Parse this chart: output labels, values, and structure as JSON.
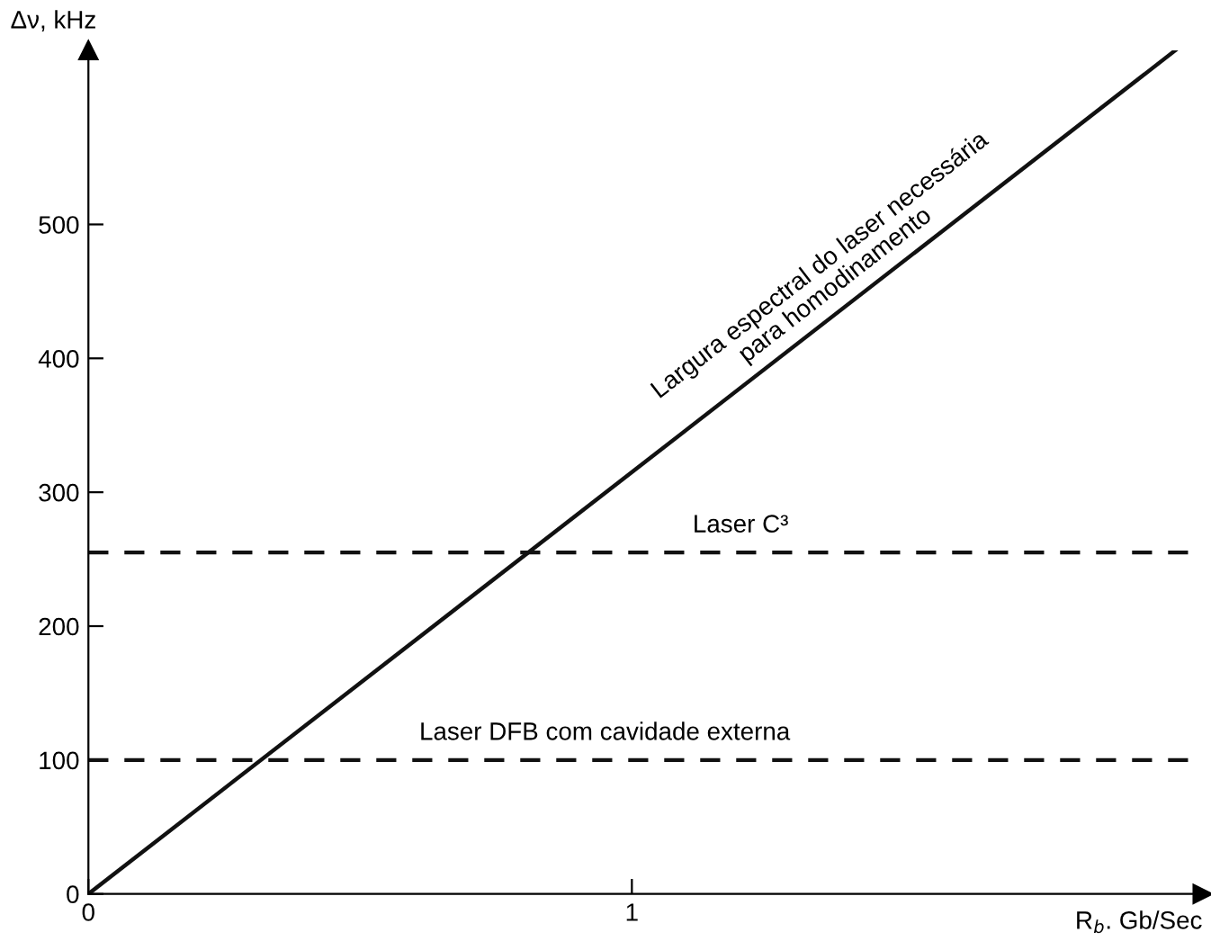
{
  "chart_data": {
    "type": "line",
    "xlabel": "R$_{b}$. Gb/Sec",
    "ylabel": "Δν, kHz",
    "series": [
      {
        "color": "#111111",
        "x": [
          0,
          2.0
        ],
        "values": [
          0,
          630
        ]
      }
    ],
    "xlim": [
      0,
      2.05
    ],
    "ylim": [
      0,
      630
    ],
    "xticks": [
      0,
      1
    ],
    "yticks": [
      0,
      100,
      200,
      300,
      400,
      500
    ],
    "ref_lines": [
      {
        "axis": "y",
        "value": 255,
        "color": "#111111",
        "line_style": "dashed"
      },
      {
        "axis": "y",
        "value": 100,
        "color": "#111111",
        "line_style": "dashed"
      }
    ],
    "annotations": [
      {
        "text": "Largura espectral do laser necessária\npara homodinamento",
        "x": 1.4,
        "y": 441
      },
      {
        "text": "Laser C³",
        "x": 1.2,
        "y": 255
      },
      {
        "text": "Laser DFB com cavidade externa",
        "x": 0.95,
        "y": 100
      }
    ],
    "grid": false,
    "marker": "none",
    "line_style": "solid"
  }
}
